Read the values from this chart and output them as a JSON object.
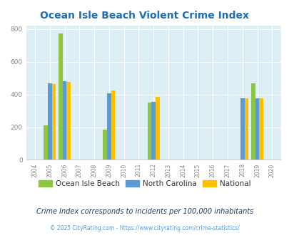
{
  "title": "Ocean Isle Beach Violent Crime Index",
  "subtitle": "Crime Index corresponds to incidents per 100,000 inhabitants",
  "copyright": "© 2025 CityRating.com - https://www.cityrating.com/crime-statistics/",
  "years_all": [
    2004,
    2005,
    2006,
    2007,
    2008,
    2009,
    2010,
    2011,
    2012,
    2013,
    2014,
    2015,
    2016,
    2017,
    2018,
    2019,
    2020
  ],
  "data_years": [
    2005,
    2006,
    2009,
    2012,
    2018,
    2019
  ],
  "oib": [
    210,
    775,
    185,
    350,
    0,
    470
  ],
  "nc": [
    470,
    480,
    405,
    355,
    375,
    375
  ],
  "nat": [
    465,
    475,
    425,
    385,
    375,
    375
  ],
  "color_oib": "#8dc63f",
  "color_nc": "#5b9bd5",
  "color_nat": "#ffc000",
  "ylim": [
    0,
    820
  ],
  "yticks": [
    0,
    200,
    400,
    600,
    800
  ],
  "bg_color": "#ddeef4",
  "title_color": "#1f6eb5",
  "subtitle_color": "#1a3a5c",
  "copyright_color": "#5b9bd5",
  "legend_labels": [
    "Ocean Isle Beach",
    "North Carolina",
    "National"
  ],
  "bar_width": 0.27
}
